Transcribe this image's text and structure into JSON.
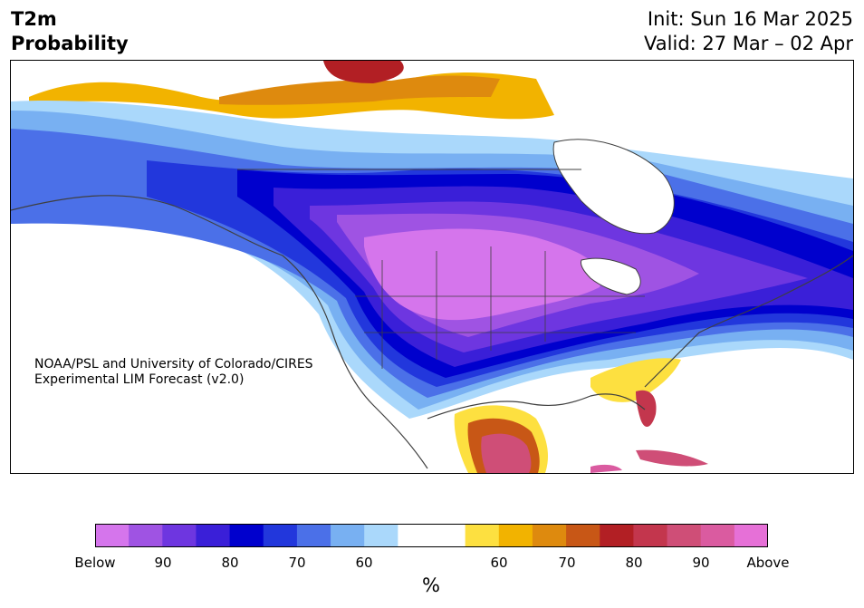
{
  "header": {
    "title_line1": "T2m",
    "title_line2": "Probability",
    "init": "Init: Sun 16 Mar 2025",
    "valid": "Valid: 27 Mar – 02 Apr"
  },
  "map": {
    "credit_line1": "NOAA/PSL and University of Colorado/CIRES",
    "credit_line2": "Experimental LIM Forecast (v2.0)",
    "region": "North America"
  },
  "colorbar": {
    "unit": "%",
    "colors": [
      "#d575ec",
      "#9f53e3",
      "#6e36e0",
      "#3a1fd8",
      "#0000cd",
      "#2237dc",
      "#4b70e8",
      "#78b0f2",
      "#aad8fb",
      "#ffffff",
      "#ffffff",
      "#fde040",
      "#f2b300",
      "#de8a0e",
      "#c85716",
      "#b21f24",
      "#c3364d",
      "#cf4e77",
      "#da5ba0",
      "#e670d7"
    ],
    "tick_labels": [
      "Below",
      "90",
      "80",
      "70",
      "60",
      "60",
      "70",
      "80",
      "90",
      "Above"
    ]
  }
}
